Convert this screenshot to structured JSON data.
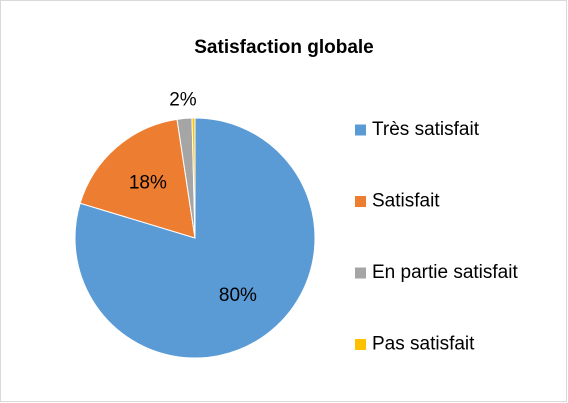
{
  "chart_data": {
    "type": "pie",
    "title": "Satisfaction globale",
    "categories": [
      "Très satisfait",
      "Satisfait",
      "En partie satisfait",
      "Pas satisfait"
    ],
    "values": [
      80,
      18,
      2,
      0.4
    ],
    "value_labels": [
      "80%",
      "18%",
      "2%",
      null
    ],
    "colors": [
      "#5b9bd5",
      "#ed7d31",
      "#a5a5a5",
      "#ffc000"
    ],
    "legend": "right"
  }
}
